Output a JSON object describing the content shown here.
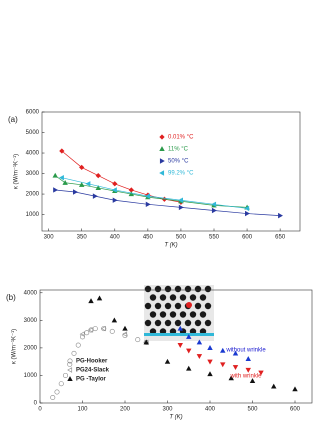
{
  "chart_data": [
    {
      "type": "scatter",
      "panel_label": "(a)",
      "x_label": "T (K)",
      "y_label": "κ (W/m⁻¹K⁻¹)",
      "xlim": [
        290,
        680
      ],
      "ylim": [
        200,
        6000
      ],
      "xticks": [
        300,
        350,
        400,
        450,
        500,
        550,
        600,
        650
      ],
      "yticks": [
        1000,
        2000,
        3000,
        4000,
        5000,
        6000
      ],
      "legend": "upper-right",
      "fit_lines": true,
      "series": [
        {
          "name": "0.01% °C",
          "color": "#e02020",
          "marker": "diamond",
          "filled": true,
          "x": [
            320,
            350,
            375,
            400,
            425,
            450,
            475,
            500
          ],
          "values": [
            4100,
            3300,
            2900,
            2500,
            2200,
            1950,
            1750,
            1600
          ]
        },
        {
          "name": "11% °C",
          "color": "#2a9a4a",
          "marker": "triangle",
          "filled": true,
          "x": [
            310,
            325,
            350,
            375,
            400,
            425,
            450,
            500,
            550,
            600
          ],
          "values": [
            2900,
            2550,
            2450,
            2300,
            2150,
            2000,
            1850,
            1650,
            1450,
            1350
          ]
        },
        {
          "name": "50% °C",
          "color": "#2a3aa0",
          "marker": "triangle-right",
          "filled": true,
          "x": [
            310,
            340,
            370,
            400,
            450,
            500,
            550,
            600,
            650
          ],
          "values": [
            2200,
            2100,
            1900,
            1700,
            1500,
            1350,
            1200,
            1050,
            950
          ]
        },
        {
          "name": "99.2% °C",
          "color": "#30b8d8",
          "marker": "triangle-left",
          "filled": true,
          "x": [
            320,
            360,
            400,
            450,
            500,
            550,
            600
          ],
          "values": [
            2800,
            2500,
            2200,
            1900,
            1700,
            1500,
            1300
          ]
        }
      ]
    },
    {
      "type": "scatter",
      "panel_label": "(b)",
      "x_label": "T (K)",
      "y_label": "κ (W/m⁻¹K⁻¹)",
      "xlim": [
        0,
        640
      ],
      "ylim": [
        0,
        4100
      ],
      "xticks": [
        0,
        100,
        200,
        300,
        400,
        500,
        600
      ],
      "yticks": [
        0,
        1000,
        2000,
        3000,
        4000
      ],
      "legend": "lower-left",
      "fit_lines": false,
      "annotations": [
        {
          "text": "without wrinkle",
          "color": "#1a1ad0"
        },
        {
          "text": "with wrinkle",
          "color": "#e02020"
        }
      ],
      "series": [
        {
          "name": "PG-Hooker",
          "color": "#888888",
          "marker": "circle",
          "filled": false,
          "x": [
            30,
            40,
            50,
            60,
            70,
            80,
            90,
            100,
            110,
            120,
            130,
            150,
            170,
            200,
            230,
            250
          ],
          "values": [
            200,
            400,
            700,
            1000,
            1400,
            1800,
            2100,
            2400,
            2550,
            2650,
            2700,
            2700,
            2600,
            2450,
            2300,
            2200
          ]
        },
        {
          "name": "PG24-Slack",
          "color": "#888888",
          "marker": "triangle-left",
          "filled": false,
          "x": [
            100,
            120,
            150,
            200,
            250
          ],
          "values": [
            2500,
            2650,
            2700,
            2500,
            2200
          ]
        },
        {
          "name": "PG -Taylor",
          "color": "#111111",
          "marker": "triangle",
          "filled": true,
          "x": [
            120,
            140,
            175,
            200,
            250,
            300,
            350,
            400,
            450,
            500,
            550,
            600
          ],
          "values": [
            3700,
            3800,
            3000,
            2700,
            2200,
            1500,
            1250,
            1050,
            900,
            800,
            600,
            500
          ]
        },
        {
          "color": "#1a3ad0",
          "marker": "triangle",
          "filled": true,
          "x": [
            330,
            350,
            375,
            400,
            430,
            460,
            490
          ],
          "values": [
            2700,
            2400,
            2200,
            2000,
            1900,
            1800,
            1600
          ]
        },
        {
          "color": "#e02020",
          "marker": "triangle-down",
          "filled": true,
          "x": [
            330,
            350,
            375,
            400,
            430,
            460,
            490,
            520
          ],
          "values": [
            2100,
            1900,
            1700,
            1500,
            1400,
            1300,
            1200,
            1100
          ]
        }
      ]
    }
  ]
}
